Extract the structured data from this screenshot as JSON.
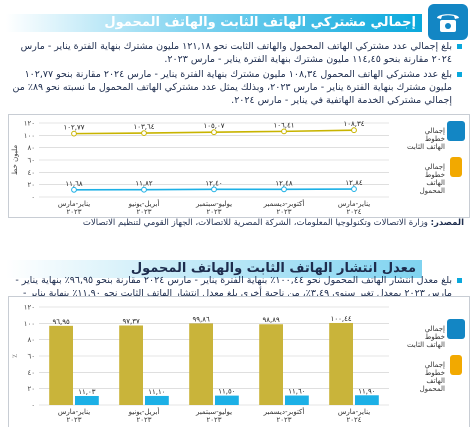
{
  "panel1": {
    "title": "إجمالي مشتركي الهاتف الثابت والهاتف المحمول",
    "bullets": [
      "بلغ إجمالي عدد مشتركي الهاتف المحمول والهاتف الثابت نحو ١٢١,١٨ مليون مشترك بنهاية الفترة يناير - مارس ٢٠٢٤ مقارنة بنحو ١١٤,٤٥ مليون مشترك بنهاية الفترة يناير - مارس ٢٠٢٣.",
      "بلغ عدد مشتركي الهاتف المحمول ١٠٨,٣٤ مليون مشترك بنهاية الفترة يناير - مارس ٢٠٢٤ مقارنة بنحو ١٠٢,٧٧ مليون مشترك بنهاية الفترة يناير - مارس ٢٠٢٣، وبذلك يمثل عدد مشتركي الهاتف المحمول ما نسبته نحو ٨٩٪ من إجمالي مشتركي الخدمة الهاتفية في يناير - مارس ٢٠٢٤."
    ],
    "source_label": "المصدر:",
    "source_text": "وزارة الاتصالات وتكنولوجيا المعلومات، الشركة المصرية للاتصالات، الجهاز القومي لتنظيم الاتصالات",
    "legend": {
      "fixed": "إجمالي خطوط الهاتف الثابت",
      "mobile": "إجمالي خطوط الهاتف المحمول"
    },
    "yunit": "مليون خط"
  },
  "panel2": {
    "title": "معدل انتشار الهاتف الثابت والهاتف المحمول",
    "bullets": [
      "بلغ معدل انتشار الهاتف المحمول نحو ١٠٠,٤٤٪ بنهاية الفترة يناير - مارس ٢٠٢٤ مقارنة بنحو ٩٦,٩٥٪ بنهاية يناير - مارس ٢٠٢٣ بمعدل تغير سنوي ٣,٤٩٪، من ناحية أخرى بلغ معدل انتشار الهاتف الثابت نحو ١١,٩٠٪ بنهاية يناير - مارس ٢٠٢٤."
    ],
    "legend": {
      "fixed": "إجمالي خطوط الهاتف الثابت",
      "mobile": "إجمالي خطوط الهاتف المحمول"
    },
    "yunit": "٪"
  },
  "colors": {
    "accent": "#0aa8dc",
    "fixed": "#1cb0e6",
    "mobile": "#c8b400",
    "bar_mobile": "#c9b43a",
    "grid": "#cccccc"
  },
  "chart_data": [
    {
      "type": "line",
      "categories": [
        "يناير-مارس ٢٠٢٣",
        "أبريل-يونيو ٢٠٢٣",
        "يوليو-سبتمبر ٢٠٢٣",
        "أكتوبر-ديسمبر ٢٠٢٣",
        "يناير-مارس ٢٠٢٤"
      ],
      "yticks": [
        "٠",
        "٢٠",
        "٤٠",
        "٦٠",
        "٨٠",
        "١٠٠",
        "١٢٠"
      ],
      "ylim": [
        0,
        120
      ],
      "series": [
        {
          "name": "إجمالي خطوط الهاتف المحمول",
          "values": [
            102.77,
            103.64,
            105.07,
            106.41,
            108.34
          ],
          "labels": [
            "١٠٢,٧٧",
            "١٠٣,٦٤",
            "١٠٥,٠٧",
            "١٠٦,٤١",
            "١٠٨,٣٤"
          ]
        },
        {
          "name": "إجمالي خطوط الهاتف الثابت",
          "values": [
            11.68,
            11.82,
            12.4,
            12.48,
            12.84
          ],
          "labels": [
            "١١,٦٨",
            "١١,٨٢",
            "١٢,٤٠",
            "١٢,٤٨",
            "١٢,٨٤"
          ]
        }
      ]
    },
    {
      "type": "bar",
      "categories": [
        "يناير-مارس ٢٠٢٣",
        "أبريل-يونيو ٢٠٢٣",
        "يوليو-سبتمبر ٢٠٢٣",
        "أكتوبر-ديسمبر ٢٠٢٣",
        "يناير-مارس ٢٠٢٤"
      ],
      "yticks": [
        "٠",
        "٢٠",
        "٤٠",
        "٦٠",
        "٨٠",
        "١٠٠",
        "١٢٠"
      ],
      "ylim": [
        0,
        120
      ],
      "series": [
        {
          "name": "إجمالي خطوط الهاتف المحمول",
          "values": [
            96.95,
            97.37,
            99.86,
            98.89,
            100.44
          ],
          "labels": [
            "٩٦,٩٥",
            "٩٧,٣٧",
            "٩٩,٨٦",
            "٩٨,٨٩",
            "١٠٠,٤٤"
          ]
        },
        {
          "name": "إجمالي خطوط الهاتف الثابت",
          "values": [
            11.03,
            11.1,
            11.5,
            11.6,
            11.9
          ],
          "labels": [
            "١١,٠٣",
            "١١,١٠",
            "١١,٥٠",
            "١١,٦٠",
            "١١,٩٠"
          ]
        }
      ]
    }
  ]
}
